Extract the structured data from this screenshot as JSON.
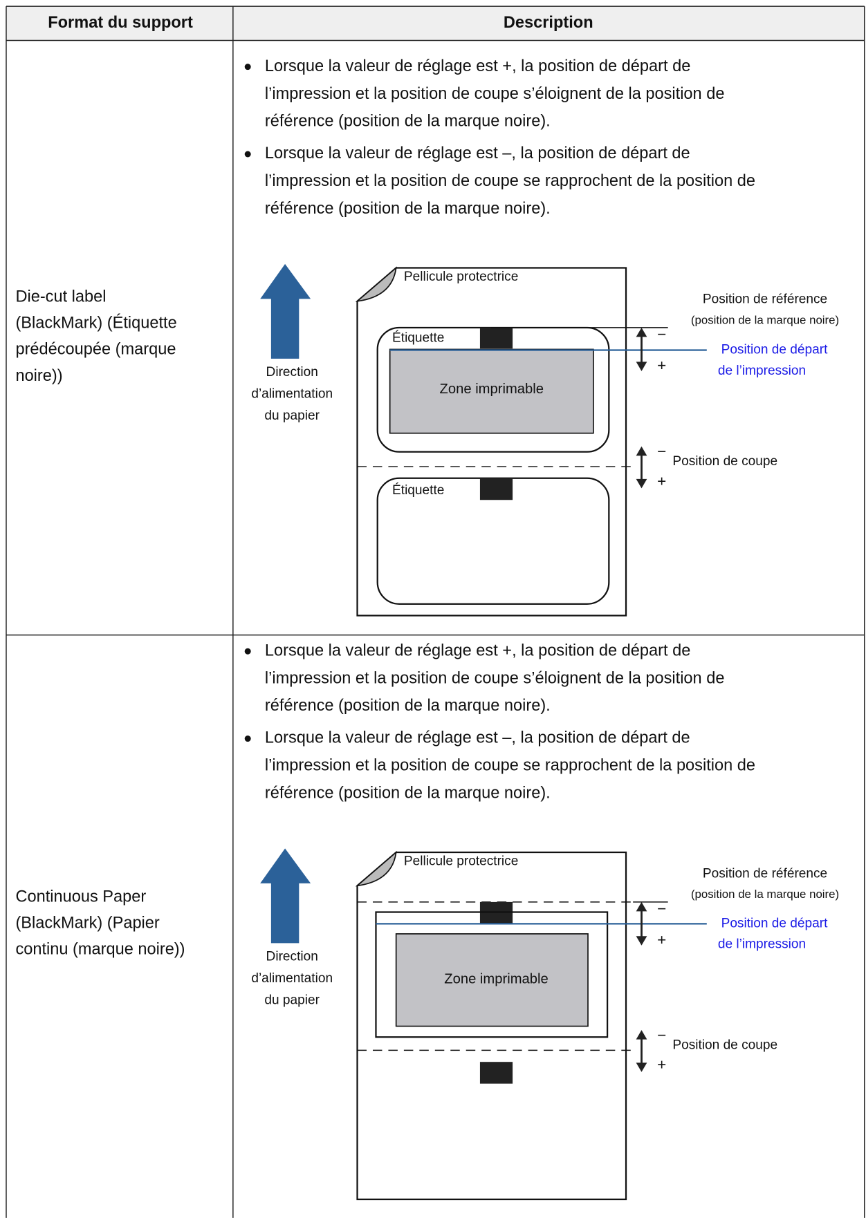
{
  "table": {
    "headers": [
      "Format du support",
      "Description"
    ],
    "rows": [
      {
        "format": [
          "Die-cut label",
          "(BlackMark) (Étiquette",
          "prédécoupée (marque",
          "noire))"
        ],
        "bullets": [
          [
            "Lorsque la valeur de réglage est +, la position de départ de",
            "l’impression et la position de coupe s’éloignent de la position de",
            "référence (position de la marque noire)."
          ],
          [
            "Lorsque la valeur de réglage est –, la position de départ de",
            "l’impression et la position de coupe se rapprochent de la position de",
            "référence (position de la marque noire)."
          ]
        ],
        "diagram": {
          "liner": "Pellicule protectrice",
          "feed": [
            "Direction",
            "d’alimentation",
            "du papier"
          ],
          "reference": [
            "Position de référence",
            "(position de la marque noire)"
          ],
          "start": [
            "Position de départ",
            "de l’impression"
          ],
          "cut": "Position de coupe",
          "zone": "Zone imprimable",
          "labels": [
            "Étiquette",
            "Étiquette"
          ],
          "minus": "−",
          "plus": "+"
        }
      },
      {
        "format": [
          "Continuous Paper",
          "(BlackMark) (Papier",
          "continu (marque noire))"
        ],
        "bullets": [
          [
            "Lorsque la valeur de réglage est +, la position de départ de",
            "l’impression et la position de coupe s’éloignent de la position de",
            "référence (position de la marque noire)."
          ],
          [
            "Lorsque la valeur de réglage est –, la position de départ de",
            "l’impression et la position de coupe se rapprochent de la position de",
            "référence (position de la marque noire)."
          ]
        ],
        "diagram": {
          "liner": "Pellicule protectrice",
          "feed": [
            "Direction",
            "d’alimentation",
            "du papier"
          ],
          "reference": [
            "Position de référence",
            "(position de la marque noire)"
          ],
          "start": [
            "Position de départ",
            "de l’impression"
          ],
          "cut": "Position de coupe",
          "zone": "Zone imprimable",
          "minus": "−",
          "plus": "+"
        }
      }
    ]
  }
}
